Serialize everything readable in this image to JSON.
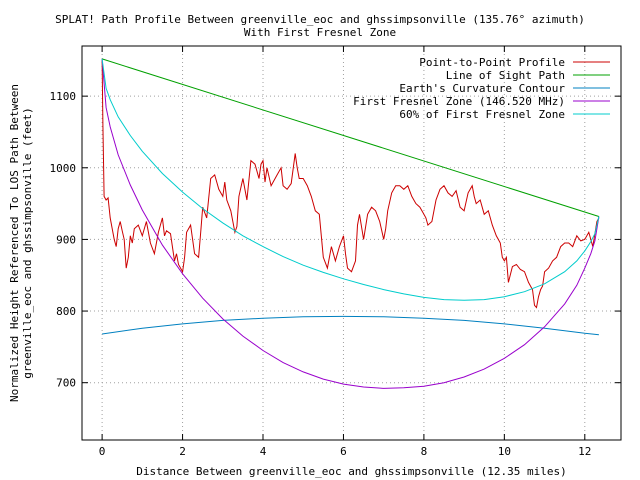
{
  "chart_data": {
    "type": "line",
    "title_line1": "SPLAT! Path Profile Between greenville_eoc and ghssimpsonville (135.76° azimuth)",
    "title_line2": "With First Fresnel Zone",
    "xlabel": "Distance Between greenville_eoc and ghssimpsonville (12.35 miles)",
    "ylabel_line1": "Normalized Height Referenced To LOS Path Between",
    "ylabel_line2": "greenville_eoc and ghssimpsonville (feet)",
    "xlim": [
      -0.5,
      12.9
    ],
    "ylim": [
      620,
      1170
    ],
    "x_ticks": [
      0,
      2,
      4,
      6,
      8,
      10,
      12
    ],
    "y_ticks": [
      700,
      800,
      900,
      1000,
      1100
    ],
    "x_tick_labels": [
      "0",
      "2",
      "4",
      "6",
      "8",
      "10",
      "12"
    ],
    "y_tick_labels": [
      "700",
      "800",
      "900",
      "1000",
      "1100"
    ],
    "grid": true,
    "legend_position": "top-right",
    "series": [
      {
        "name": "Point-to-Point Profile",
        "color": "#cc0000",
        "points": [
          [
            0,
            1150
          ],
          [
            0.02,
            1060
          ],
          [
            0.05,
            960
          ],
          [
            0.1,
            955
          ],
          [
            0.15,
            958
          ],
          [
            0.2,
            930
          ],
          [
            0.25,
            915
          ],
          [
            0.3,
            900
          ],
          [
            0.35,
            890
          ],
          [
            0.4,
            915
          ],
          [
            0.45,
            925
          ],
          [
            0.5,
            912
          ],
          [
            0.55,
            900
          ],
          [
            0.6,
            860
          ],
          [
            0.65,
            875
          ],
          [
            0.7,
            905
          ],
          [
            0.75,
            895
          ],
          [
            0.8,
            915
          ],
          [
            0.9,
            920
          ],
          [
            1.0,
            905
          ],
          [
            1.1,
            925
          ],
          [
            1.2,
            895
          ],
          [
            1.3,
            880
          ],
          [
            1.4,
            910
          ],
          [
            1.5,
            930
          ],
          [
            1.55,
            905
          ],
          [
            1.6,
            912
          ],
          [
            1.7,
            908
          ],
          [
            1.8,
            870
          ],
          [
            1.85,
            880
          ],
          [
            1.9,
            865
          ],
          [
            2.0,
            855
          ],
          [
            2.05,
            875
          ],
          [
            2.1,
            910
          ],
          [
            2.2,
            920
          ],
          [
            2.3,
            880
          ],
          [
            2.4,
            875
          ],
          [
            2.45,
            910
          ],
          [
            2.5,
            945
          ],
          [
            2.6,
            930
          ],
          [
            2.7,
            985
          ],
          [
            2.8,
            990
          ],
          [
            2.9,
            970
          ],
          [
            3.0,
            960
          ],
          [
            3.05,
            980
          ],
          [
            3.1,
            955
          ],
          [
            3.2,
            940
          ],
          [
            3.3,
            910
          ],
          [
            3.35,
            918
          ],
          [
            3.4,
            960
          ],
          [
            3.5,
            985
          ],
          [
            3.6,
            955
          ],
          [
            3.7,
            1010
          ],
          [
            3.8,
            1005
          ],
          [
            3.9,
            985
          ],
          [
            3.95,
            1005
          ],
          [
            4.0,
            1010
          ],
          [
            4.05,
            980
          ],
          [
            4.1,
            1000
          ],
          [
            4.2,
            975
          ],
          [
            4.3,
            985
          ],
          [
            4.35,
            990
          ],
          [
            4.45,
            1000
          ],
          [
            4.5,
            975
          ],
          [
            4.6,
            970
          ],
          [
            4.7,
            978
          ],
          [
            4.8,
            1020
          ],
          [
            4.85,
            1000
          ],
          [
            4.9,
            985
          ],
          [
            5.0,
            985
          ],
          [
            5.1,
            975
          ],
          [
            5.2,
            960
          ],
          [
            5.3,
            940
          ],
          [
            5.4,
            935
          ],
          [
            5.5,
            875
          ],
          [
            5.6,
            860
          ],
          [
            5.7,
            890
          ],
          [
            5.8,
            870
          ],
          [
            5.9,
            890
          ],
          [
            6.0,
            905
          ],
          [
            6.05,
            880
          ],
          [
            6.1,
            860
          ],
          [
            6.2,
            855
          ],
          [
            6.3,
            870
          ],
          [
            6.35,
            920
          ],
          [
            6.4,
            935
          ],
          [
            6.5,
            900
          ],
          [
            6.6,
            935
          ],
          [
            6.7,
            945
          ],
          [
            6.8,
            940
          ],
          [
            6.9,
            925
          ],
          [
            7.0,
            900
          ],
          [
            7.05,
            915
          ],
          [
            7.1,
            940
          ],
          [
            7.2,
            965
          ],
          [
            7.3,
            975
          ],
          [
            7.4,
            975
          ],
          [
            7.5,
            970
          ],
          [
            7.6,
            975
          ],
          [
            7.7,
            960
          ],
          [
            7.8,
            950
          ],
          [
            7.9,
            945
          ],
          [
            8.0,
            935
          ],
          [
            8.05,
            930
          ],
          [
            8.1,
            920
          ],
          [
            8.2,
            925
          ],
          [
            8.3,
            955
          ],
          [
            8.4,
            970
          ],
          [
            8.5,
            975
          ],
          [
            8.6,
            965
          ],
          [
            8.7,
            960
          ],
          [
            8.8,
            968
          ],
          [
            8.9,
            945
          ],
          [
            9.0,
            940
          ],
          [
            9.1,
            965
          ],
          [
            9.2,
            975
          ],
          [
            9.25,
            960
          ],
          [
            9.3,
            950
          ],
          [
            9.4,
            955
          ],
          [
            9.5,
            935
          ],
          [
            9.6,
            940
          ],
          [
            9.7,
            920
          ],
          [
            9.8,
            905
          ],
          [
            9.85,
            900
          ],
          [
            9.9,
            895
          ],
          [
            9.95,
            875
          ],
          [
            10.0,
            870
          ],
          [
            10.05,
            875
          ],
          [
            10.1,
            840
          ],
          [
            10.2,
            862
          ],
          [
            10.3,
            865
          ],
          [
            10.4,
            858
          ],
          [
            10.5,
            855
          ],
          [
            10.6,
            840
          ],
          [
            10.7,
            830
          ],
          [
            10.75,
            808
          ],
          [
            10.8,
            805
          ],
          [
            10.85,
            820
          ],
          [
            10.9,
            830
          ],
          [
            10.95,
            835
          ],
          [
            11.0,
            855
          ],
          [
            11.1,
            860
          ],
          [
            11.2,
            870
          ],
          [
            11.3,
            875
          ],
          [
            11.4,
            890
          ],
          [
            11.5,
            895
          ],
          [
            11.6,
            895
          ],
          [
            11.7,
            890
          ],
          [
            11.8,
            905
          ],
          [
            11.9,
            898
          ],
          [
            12.0,
            900
          ],
          [
            12.1,
            910
          ],
          [
            12.2,
            890
          ],
          [
            12.3,
            925
          ],
          [
            12.35,
            930
          ]
        ]
      },
      {
        "name": "Line of Sight Path",
        "color": "#00a000",
        "points": [
          [
            0,
            1152
          ],
          [
            12.35,
            932
          ]
        ]
      },
      {
        "name": "Earth's Curvature Contour",
        "color": "#0080c0",
        "points": [
          [
            0,
            768
          ],
          [
            1,
            776
          ],
          [
            2,
            782
          ],
          [
            3,
            787
          ],
          [
            4,
            790
          ],
          [
            5,
            792
          ],
          [
            6,
            792.5
          ],
          [
            7,
            792
          ],
          [
            8,
            790
          ],
          [
            9,
            787
          ],
          [
            10,
            782
          ],
          [
            11,
            776
          ],
          [
            12,
            769
          ],
          [
            12.35,
            767
          ]
        ]
      },
      {
        "name": "First Fresnel Zone (146.520 MHz)",
        "color": "#9900cc",
        "points": [
          [
            0,
            1152
          ],
          [
            0.1,
            1084
          ],
          [
            0.2,
            1057
          ],
          [
            0.4,
            1018
          ],
          [
            0.7,
            976
          ],
          [
            1,
            941
          ],
          [
            1.5,
            892
          ],
          [
            2,
            852
          ],
          [
            2.5,
            818
          ],
          [
            3,
            789
          ],
          [
            3.5,
            765
          ],
          [
            4,
            745
          ],
          [
            4.5,
            728
          ],
          [
            5,
            715
          ],
          [
            5.5,
            705
          ],
          [
            6,
            698
          ],
          [
            6.5,
            694
          ],
          [
            7,
            692
          ],
          [
            7.5,
            693
          ],
          [
            8,
            695
          ],
          [
            8.5,
            700
          ],
          [
            9,
            708
          ],
          [
            9.5,
            719
          ],
          [
            10,
            734
          ],
          [
            10.5,
            753
          ],
          [
            11,
            778
          ],
          [
            11.5,
            810
          ],
          [
            11.8,
            836
          ],
          [
            12,
            860
          ],
          [
            12.15,
            880
          ],
          [
            12.25,
            898
          ],
          [
            12.35,
            932
          ]
        ]
      },
      {
        "name": "60% of First Fresnel Zone",
        "color": "#00cccc",
        "points": [
          [
            0,
            1152
          ],
          [
            0.1,
            1111
          ],
          [
            0.2,
            1095
          ],
          [
            0.4,
            1071
          ],
          [
            0.7,
            1045
          ],
          [
            1,
            1023
          ],
          [
            1.5,
            992
          ],
          [
            2,
            966
          ],
          [
            2.5,
            943
          ],
          [
            3,
            923
          ],
          [
            3.5,
            905
          ],
          [
            4,
            890
          ],
          [
            4.5,
            876
          ],
          [
            5,
            864
          ],
          [
            5.5,
            854
          ],
          [
            6,
            845
          ],
          [
            6.5,
            837
          ],
          [
            7,
            830
          ],
          [
            7.5,
            824
          ],
          [
            8,
            819
          ],
          [
            8.5,
            816
          ],
          [
            9,
            815
          ],
          [
            9.5,
            816
          ],
          [
            10,
            820
          ],
          [
            10.5,
            827
          ],
          [
            11,
            838
          ],
          [
            11.5,
            855
          ],
          [
            11.8,
            870
          ],
          [
            12,
            884
          ],
          [
            12.15,
            897
          ],
          [
            12.25,
            908
          ],
          [
            12.35,
            932
          ]
        ]
      }
    ]
  }
}
